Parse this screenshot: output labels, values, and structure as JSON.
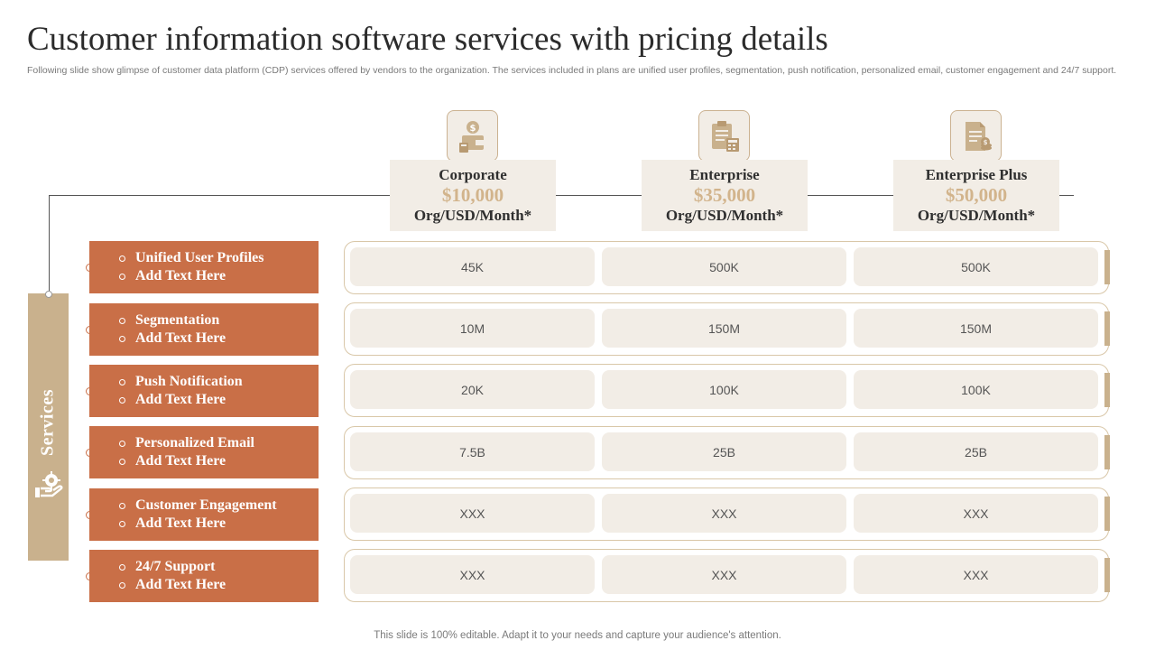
{
  "title": "Customer information software services with pricing details",
  "subtitle": "Following slide show glimpse of customer data platform (CDP) services offered by vendors to the organization. The services included in plans are unified user profiles, segmentation, push notification, personalized email, customer engagement and 24/7 support.",
  "services_label": "Services",
  "plans": [
    {
      "name": "Corporate",
      "price": "$10,000",
      "unit": "Org/USD/Month*",
      "icon": "wallet-dollar-icon"
    },
    {
      "name": "Enterprise",
      "price": "$35,000",
      "unit": "Org/USD/Month*",
      "icon": "clipboard-calculator-icon"
    },
    {
      "name": "Enterprise Plus",
      "price": "$50,000",
      "unit": "Org/USD/Month*",
      "icon": "document-coins-icon"
    }
  ],
  "services": [
    {
      "name": "Unified User Profiles",
      "sub": "Add Text Here",
      "values": [
        "45K",
        "500K",
        "500K"
      ]
    },
    {
      "name": "Segmentation",
      "sub": "Add Text Here",
      "values": [
        "10M",
        "150M",
        "150M"
      ]
    },
    {
      "name": "Push Notification",
      "sub": "Add Text Here",
      "values": [
        "20K",
        "100K",
        "100K"
      ]
    },
    {
      "name": "Personalized Email",
      "sub": "Add Text Here",
      "values": [
        "7.5B",
        "25B",
        "25B"
      ]
    },
    {
      "name": "Customer Engagement",
      "sub": "Add Text Here",
      "values": [
        "XXX",
        "XXX",
        "XXX"
      ]
    },
    {
      "name": "24/7 Support",
      "sub": "Add Text Here",
      "values": [
        "XXX",
        "XXX",
        "XXX"
      ]
    }
  ],
  "footer": "This slide is 100% editable. Adapt it to your needs and capture your audience's attention.",
  "colors": {
    "accent_orange": "#c96f47",
    "accent_tan": "#c9b18d",
    "price_gold": "#d2b48c",
    "cell_bg": "#f2ede6"
  }
}
